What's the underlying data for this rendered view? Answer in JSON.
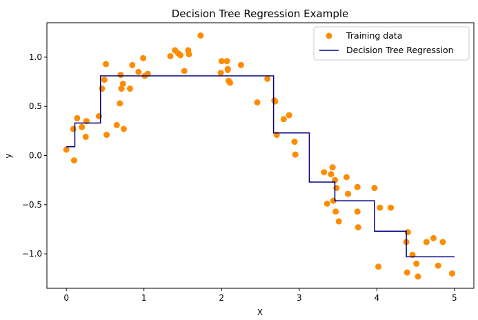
{
  "chart_data": {
    "type": "scatter",
    "title": "Decision Tree Regression Example",
    "xlabel": "X",
    "ylabel": "y",
    "xlim": [
      -0.25,
      5.25
    ],
    "ylim": [
      -1.35,
      1.35
    ],
    "xticks": [
      0,
      1,
      2,
      3,
      4,
      5
    ],
    "xtick_labels": [
      "0",
      "1",
      "2",
      "3",
      "4",
      "5"
    ],
    "yticks": [
      -1.0,
      -0.5,
      0.0,
      0.5,
      1.0
    ],
    "ytick_labels": [
      "−1.0",
      "−0.5",
      "0.0",
      "0.5",
      "1.0"
    ],
    "grid": false,
    "legend_position": "top-right",
    "colors": {
      "points": "#ff8c00",
      "line": "#00007f"
    },
    "series": [
      {
        "name": "Training data",
        "kind": "scatter",
        "x": [
          0.0,
          0.09,
          0.1,
          0.14,
          0.2,
          0.25,
          0.26,
          0.42,
          0.46,
          0.49,
          0.51,
          0.52,
          0.65,
          0.69,
          0.7,
          0.71,
          0.73,
          0.74,
          0.82,
          0.85,
          0.93,
          0.99,
          1.01,
          1.05,
          1.34,
          1.4,
          1.44,
          1.47,
          1.52,
          1.57,
          1.58,
          1.73,
          1.99,
          2.0,
          2.07,
          2.08,
          2.08,
          2.09,
          2.1,
          2.11,
          2.25,
          2.46,
          2.59,
          2.68,
          2.69,
          2.71,
          2.8,
          2.87,
          2.94,
          2.95,
          3.32,
          3.36,
          3.41,
          3.43,
          3.44,
          3.46,
          3.47,
          3.48,
          3.51,
          3.61,
          3.63,
          3.75,
          3.75,
          3.76,
          3.97,
          4.02,
          4.04,
          4.18,
          4.38,
          4.39,
          4.4,
          4.46,
          4.51,
          4.53,
          4.64,
          4.73,
          4.79,
          4.85,
          4.97
        ],
        "y": [
          0.06,
          0.27,
          -0.05,
          0.38,
          0.29,
          0.19,
          0.35,
          0.4,
          0.68,
          0.77,
          0.93,
          0.21,
          0.31,
          0.53,
          0.82,
          0.68,
          0.73,
          0.27,
          0.68,
          0.92,
          0.85,
          0.99,
          0.81,
          0.83,
          1.01,
          1.07,
          1.04,
          1.02,
          0.86,
          1.07,
          1.03,
          1.22,
          0.84,
          0.96,
          0.96,
          0.88,
          0.87,
          0.76,
          0.75,
          0.74,
          0.92,
          0.54,
          0.78,
          0.56,
          0.55,
          0.21,
          0.37,
          0.41,
          0.14,
          0.01,
          -0.17,
          -0.49,
          -0.19,
          -0.12,
          -0.46,
          -0.25,
          -0.57,
          -0.33,
          -0.67,
          -0.22,
          -0.39,
          -0.32,
          -0.57,
          -0.73,
          -0.33,
          -1.13,
          -0.53,
          -0.53,
          -0.88,
          -1.19,
          -0.78,
          -1.01,
          -1.1,
          -1.23,
          -0.88,
          -0.84,
          -1.12,
          -0.88,
          -1.2
        ]
      },
      {
        "name": "Decision Tree Regression",
        "kind": "step",
        "x": [
          0.0,
          0.11,
          0.11,
          0.44,
          0.44,
          2.67,
          2.67,
          3.13,
          3.13,
          3.46,
          3.46,
          3.97,
          3.97,
          4.38,
          4.38,
          5.0
        ],
        "y": [
          0.09,
          0.09,
          0.33,
          0.33,
          0.81,
          0.81,
          0.23,
          0.23,
          -0.27,
          -0.27,
          -0.46,
          -0.46,
          -0.77,
          -0.77,
          -1.03,
          -1.03
        ]
      }
    ]
  }
}
